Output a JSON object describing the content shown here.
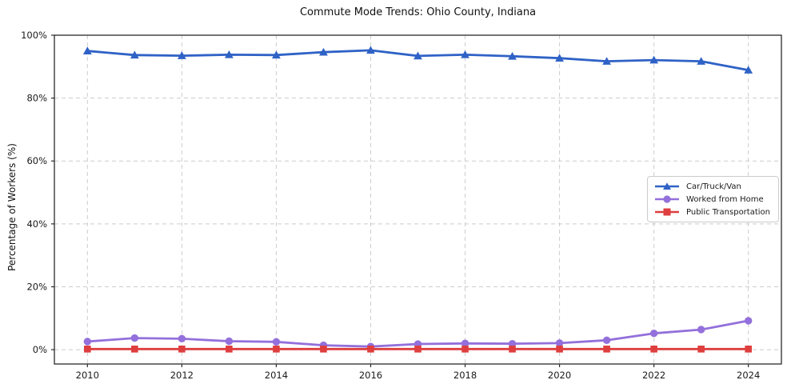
{
  "chart_data": {
    "type": "line",
    "title": "Commute Mode Trends: Ohio County, Indiana",
    "xlabel": "",
    "ylabel": "Percentage of Workers (%)",
    "x": [
      2010,
      2011,
      2012,
      2013,
      2014,
      2015,
      2016,
      2017,
      2018,
      2019,
      2020,
      2021,
      2022,
      2023,
      2024
    ],
    "series": [
      {
        "name": "Car/Truck/Van",
        "color": "#2f62c6",
        "marker": "triangle",
        "values": [
          95.0,
          93.7,
          93.5,
          93.8,
          93.7,
          94.6,
          95.2,
          93.4,
          93.8,
          93.3,
          92.7,
          91.7,
          92.1,
          91.7,
          88.9
        ]
      },
      {
        "name": "Worked from Home",
        "color": "#9370db",
        "marker": "circle",
        "values": [
          2.6,
          3.7,
          3.5,
          2.7,
          2.5,
          1.4,
          1.0,
          1.8,
          2.0,
          1.9,
          2.1,
          3.0,
          5.2,
          6.4,
          9.2
        ]
      },
      {
        "name": "Public Transportation",
        "color": "#de3e3e",
        "marker": "square",
        "values": [
          0.2,
          0.2,
          0.2,
          0.2,
          0.2,
          0.2,
          0.2,
          0.2,
          0.2,
          0.2,
          0.2,
          0.2,
          0.2,
          0.2,
          0.2
        ]
      }
    ],
    "axes": {
      "xlim": [
        2009.3,
        2024.7
      ],
      "ylim": [
        -4.55,
        100
      ],
      "xticks": [
        2010,
        2012,
        2014,
        2016,
        2018,
        2020,
        2022,
        2024
      ],
      "yticks": [
        0,
        20,
        40,
        60,
        80,
        100
      ],
      "ytick_labels": [
        "0%",
        "20%",
        "40%",
        "60%",
        "80%",
        "100%"
      ],
      "grid": true,
      "grid_style": "dashed",
      "legend_position": "center-right"
    },
    "colors": {
      "grid": "#cccccc",
      "spine": "#2a2a2a",
      "tick_text": "#1a1a1a",
      "background": "#ffffff"
    }
  }
}
